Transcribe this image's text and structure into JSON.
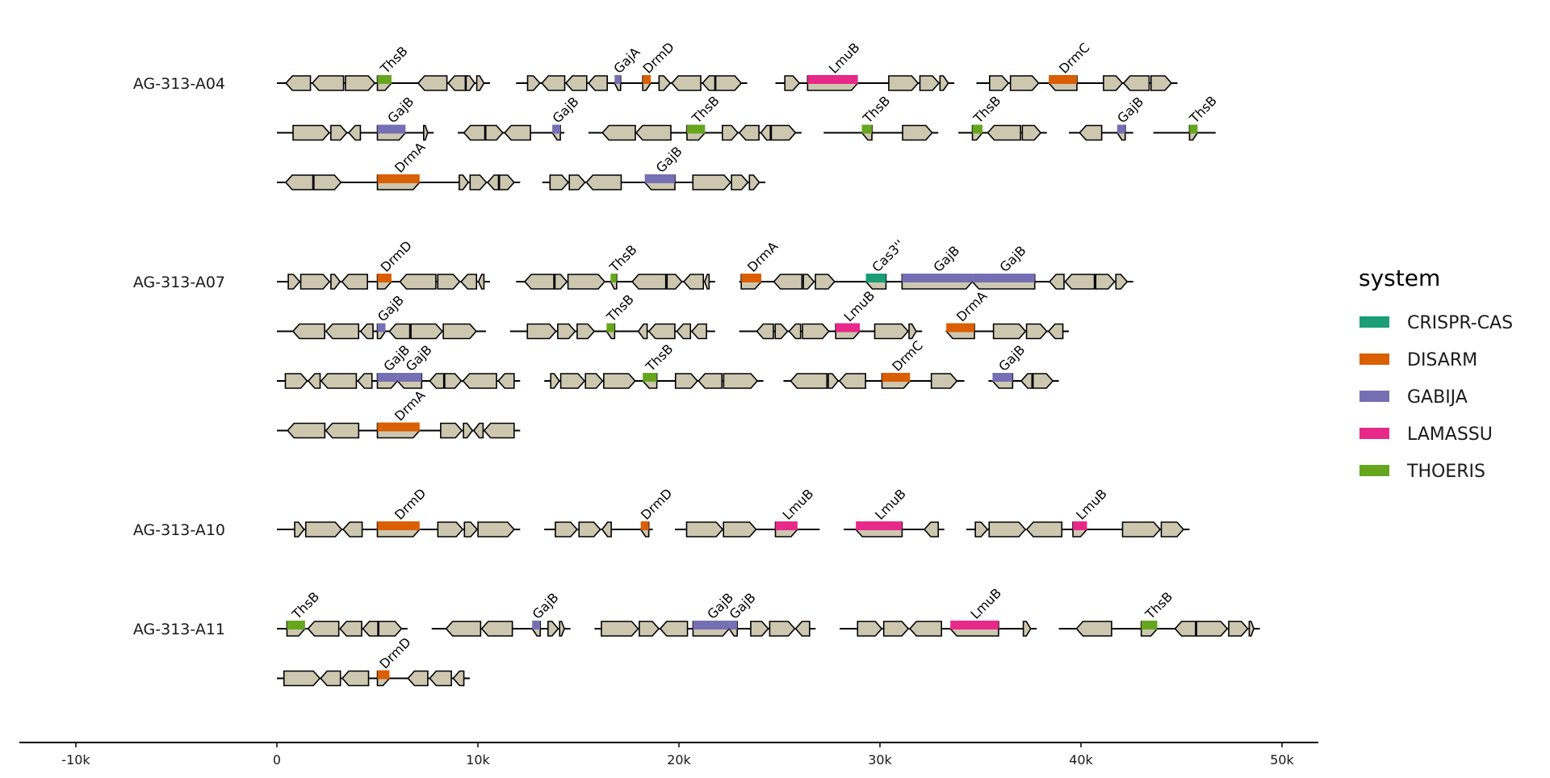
{
  "chart_data": {
    "type": "gene-map",
    "xlabel": "",
    "ylabel": "",
    "xlim": [
      -12000,
      52000
    ],
    "x_ticks": [
      {
        "value": -10000,
        "label": "-10k"
      },
      {
        "value": 0,
        "label": "0"
      },
      {
        "value": 10000,
        "label": "10k"
      },
      {
        "value": 20000,
        "label": "20k"
      },
      {
        "value": 30000,
        "label": "30k"
      },
      {
        "value": 40000,
        "label": "40k"
      },
      {
        "value": 50000,
        "label": "50k"
      }
    ],
    "colors": {
      "gene": "#cdc7b0",
      "CRISPR-CAS": "#1b9e77",
      "DISARM": "#d95f02",
      "GABIJA": "#7570b3",
      "LAMASSU": "#e7298a",
      "THOERIS": "#66a61e"
    },
    "legend": {
      "title": "system",
      "position": "right",
      "entries": [
        "CRISPR-CAS",
        "DISARM",
        "GABIJA",
        "LAMASSU",
        "THOERIS"
      ]
    },
    "genomes": [
      {
        "name": "AG-313-A04",
        "rows": [
          [
            {
              "start": 0,
              "end": 10600,
              "hits": [
                {
                  "gene": "ThsB",
                  "system": "THOERIS",
                  "start": 5000,
                  "end": 5700
                }
              ]
            },
            {
              "start": 11900,
              "end": 23400,
              "hits": [
                {
                  "gene": "GajA",
                  "system": "GABIJA",
                  "start": 16800,
                  "end": 17100
                },
                {
                  "gene": "DrmD",
                  "system": "DISARM",
                  "start": 18200,
                  "end": 18600
                }
              ]
            },
            {
              "start": 24800,
              "end": 33700,
              "hits": [
                {
                  "gene": "LmuB",
                  "system": "LAMASSU",
                  "start": 26400,
                  "end": 28900
                }
              ]
            },
            {
              "start": 34800,
              "end": 44800,
              "hits": [
                {
                  "gene": "DrmC",
                  "system": "DISARM",
                  "start": 38400,
                  "end": 39800
                }
              ]
            }
          ],
          [
            {
              "start": 0,
              "end": 7800,
              "hits": [
                {
                  "gene": "GajB",
                  "system": "GABIJA",
                  "start": 5000,
                  "end": 6400
                }
              ]
            },
            {
              "start": 9000,
              "end": 14300,
              "hits": [
                {
                  "gene": "GajB",
                  "system": "GABIJA",
                  "start": 13700,
                  "end": 14100
                }
              ]
            },
            {
              "start": 15500,
              "end": 26100,
              "hits": [
                {
                  "gene": "ThsB",
                  "system": "THOERIS",
                  "start": 20400,
                  "end": 21300
                }
              ]
            },
            {
              "start": 27200,
              "end": 32900,
              "hits": [
                {
                  "gene": "ThsB",
                  "system": "THOERIS",
                  "start": 29100,
                  "end": 29600
                }
              ]
            },
            {
              "start": 33900,
              "end": 38300,
              "hits": [
                {
                  "gene": "ThsB",
                  "system": "THOERIS",
                  "start": 34600,
                  "end": 35100
                }
              ]
            },
            {
              "start": 39400,
              "end": 42600,
              "hits": [
                {
                  "gene": "GajB",
                  "system": "GABIJA",
                  "start": 41800,
                  "end": 42200
                }
              ]
            },
            {
              "start": 43600,
              "end": 46700,
              "hits": [
                {
                  "gene": "ThsB",
                  "system": "THOERIS",
                  "start": 45400,
                  "end": 45800
                }
              ]
            }
          ],
          [
            {
              "start": 0,
              "end": 12100,
              "hits": [
                {
                  "gene": "DrmA",
                  "system": "DISARM",
                  "start": 5000,
                  "end": 7100
                }
              ]
            },
            {
              "start": 13200,
              "end": 24300,
              "hits": [
                {
                  "gene": "GajB",
                  "system": "GABIJA",
                  "start": 18300,
                  "end": 19800
                }
              ]
            }
          ]
        ]
      },
      {
        "name": "AG-313-A07",
        "rows": [
          [
            {
              "start": 0,
              "end": 10600,
              "hits": [
                {
                  "gene": "DrmD",
                  "system": "DISARM",
                  "start": 5000,
                  "end": 5700
                }
              ]
            },
            {
              "start": 11900,
              "end": 21800,
              "hits": [
                {
                  "gene": "ThsB",
                  "system": "THOERIS",
                  "start": 16600,
                  "end": 16900
                }
              ]
            },
            {
              "start": 23000,
              "end": 42600,
              "hits": [
                {
                  "gene": "DrmA",
                  "system": "DISARM",
                  "start": 23100,
                  "end": 24100
                },
                {
                  "gene": "Cas3''",
                  "system": "CRISPR-CAS",
                  "start": 29300,
                  "end": 30300
                },
                {
                  "gene": "GajB",
                  "system": "GABIJA",
                  "start": 31100,
                  "end": 34600
                },
                {
                  "gene": "GajB",
                  "system": "GABIJA",
                  "start": 34600,
                  "end": 37700
                }
              ]
            }
          ],
          [
            {
              "start": 0,
              "end": 10400,
              "hits": [
                {
                  "gene": "GajB",
                  "system": "GABIJA",
                  "start": 5000,
                  "end": 5400
                }
              ]
            },
            {
              "start": 11600,
              "end": 21800,
              "hits": [
                {
                  "gene": "ThsB",
                  "system": "THOERIS",
                  "start": 16400,
                  "end": 16800
                }
              ]
            },
            {
              "start": 23000,
              "end": 32100,
              "hits": [
                {
                  "gene": "LmuB",
                  "system": "LAMASSU",
                  "start": 27800,
                  "end": 29000
                }
              ]
            },
            {
              "start": 33300,
              "end": 39400,
              "hits": [
                {
                  "gene": "DrmA",
                  "system": "DISARM",
                  "start": 33300,
                  "end": 34700
                }
              ]
            }
          ],
          [
            {
              "start": 0,
              "end": 12100,
              "hits": [
                {
                  "gene": "GajB",
                  "system": "GABIJA",
                  "start": 5000,
                  "end": 6000
                },
                {
                  "gene": "GajB",
                  "system": "GABIJA",
                  "start": 6000,
                  "end": 7200
                }
              ]
            },
            {
              "start": 13300,
              "end": 24200,
              "hits": [
                {
                  "gene": "ThsB",
                  "system": "THOERIS",
                  "start": 18200,
                  "end": 18900
                }
              ]
            },
            {
              "start": 25200,
              "end": 34200,
              "hits": [
                {
                  "gene": "DrmC",
                  "system": "DISARM",
                  "start": 30100,
                  "end": 31500
                }
              ]
            },
            {
              "start": 35400,
              "end": 38900,
              "hits": [
                {
                  "gene": "GajB",
                  "system": "GABIJA",
                  "start": 35600,
                  "end": 36600
                }
              ]
            }
          ],
          [
            {
              "start": 0,
              "end": 12100,
              "hits": [
                {
                  "gene": "DrmA",
                  "system": "DISARM",
                  "start": 5000,
                  "end": 7100
                }
              ]
            }
          ]
        ]
      },
      {
        "name": "AG-313-A10",
        "rows": [
          [
            {
              "start": 0,
              "end": 12100,
              "hits": [
                {
                  "gene": "DrmD",
                  "system": "DISARM",
                  "start": 5000,
                  "end": 7100
                }
              ]
            },
            {
              "start": 13300,
              "end": 18700,
              "hits": [
                {
                  "gene": "DrmD",
                  "system": "DISARM",
                  "start": 18100,
                  "end": 18500
                }
              ]
            },
            {
              "start": 19800,
              "end": 27000,
              "hits": [
                {
                  "gene": "LmuB",
                  "system": "LAMASSU",
                  "start": 24800,
                  "end": 25900
                }
              ]
            },
            {
              "start": 28200,
              "end": 33200,
              "hits": [
                {
                  "gene": "LmuB",
                  "system": "LAMASSU",
                  "start": 28800,
                  "end": 31100
                }
              ]
            },
            {
              "start": 34300,
              "end": 45400,
              "hits": [
                {
                  "gene": "LmuB",
                  "system": "LAMASSU",
                  "start": 39600,
                  "end": 40300
                }
              ]
            }
          ]
        ]
      },
      {
        "name": "AG-313-A11",
        "rows": [
          [
            {
              "start": 0,
              "end": 6500,
              "hits": [
                {
                  "gene": "ThsB",
                  "system": "THOERIS",
                  "start": 500,
                  "end": 1400
                }
              ]
            },
            {
              "start": 7700,
              "end": 14600,
              "hits": [
                {
                  "gene": "GajB",
                  "system": "GABIJA",
                  "start": 12700,
                  "end": 13100
                }
              ]
            },
            {
              "start": 15800,
              "end": 26800,
              "hits": [
                {
                  "gene": "GajB",
                  "system": "GABIJA",
                  "start": 20700,
                  "end": 22500
                },
                {
                  "gene": "GajB",
                  "system": "GABIJA",
                  "start": 22500,
                  "end": 22900
                }
              ]
            },
            {
              "start": 28000,
              "end": 37800,
              "hits": [
                {
                  "gene": "LmuB",
                  "system": "LAMASSU",
                  "start": 33500,
                  "end": 35900
                }
              ]
            },
            {
              "start": 38900,
              "end": 48900,
              "hits": [
                {
                  "gene": "ThsB",
                  "system": "THOERIS",
                  "start": 43000,
                  "end": 43800
                }
              ]
            }
          ],
          [
            {
              "start": 0,
              "end": 9600,
              "hits": [
                {
                  "gene": "DrmD",
                  "system": "DISARM",
                  "start": 5000,
                  "end": 5600
                }
              ]
            }
          ]
        ]
      }
    ]
  }
}
